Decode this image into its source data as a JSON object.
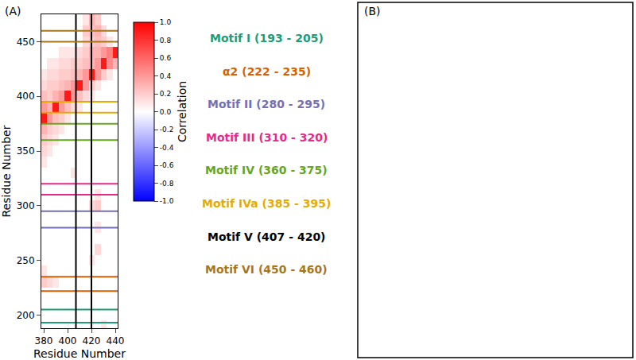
{
  "chart_data": {
    "type": "heatmap",
    "panel_label": "(A)",
    "x": [
      380,
      385,
      390,
      395,
      400,
      405,
      410,
      415,
      420,
      425,
      430,
      435,
      440
    ],
    "y": [
      190,
      200,
      210,
      220,
      230,
      240,
      250,
      260,
      270,
      280,
      290,
      300,
      310,
      320,
      330,
      340,
      350,
      360,
      370,
      380,
      390,
      400,
      410,
      420,
      430,
      440,
      450,
      460,
      470
    ],
    "cells": [
      [
        0,
        0,
        0,
        0,
        0,
        0,
        0,
        0,
        0,
        0,
        0.1,
        0,
        0
      ],
      [
        0,
        0,
        0,
        0,
        0,
        0,
        0,
        0,
        0,
        0,
        0,
        0,
        0
      ],
      [
        0,
        0,
        0,
        0,
        0,
        0,
        0,
        0,
        0,
        0,
        0,
        0,
        0
      ],
      [
        0,
        0,
        0,
        0,
        0,
        0,
        0,
        0,
        0,
        0,
        0,
        0,
        0
      ],
      [
        0.2,
        0.15,
        0.1,
        0,
        0,
        0,
        0,
        0,
        0,
        0,
        0,
        0,
        0
      ],
      [
        0.1,
        0,
        0,
        0,
        0,
        0,
        0,
        0,
        0,
        0,
        0,
        0,
        0
      ],
      [
        0,
        0,
        0,
        0,
        0,
        0,
        0,
        0,
        0.1,
        0,
        0,
        0,
        0
      ],
      [
        0,
        0,
        0,
        0,
        0,
        0,
        0,
        0,
        0,
        0.15,
        0,
        0,
        0
      ],
      [
        0,
        0,
        0,
        0,
        0,
        0,
        0,
        0,
        0,
        0,
        0,
        0,
        0
      ],
      [
        0,
        0,
        0,
        0,
        0,
        0,
        0,
        0,
        0,
        0.1,
        0,
        0,
        0
      ],
      [
        0,
        0,
        0,
        0,
        0,
        0,
        0,
        0,
        0,
        0,
        0,
        0,
        0
      ],
      [
        0,
        0,
        0,
        0,
        0,
        0,
        0,
        0,
        0.15,
        0.2,
        0,
        0,
        0
      ],
      [
        0,
        0,
        0,
        0,
        0,
        0,
        0,
        0,
        0,
        0.1,
        0,
        0,
        0
      ],
      [
        0,
        0,
        0,
        0,
        0,
        0,
        0,
        0,
        0,
        0,
        0,
        0,
        0
      ],
      [
        0,
        0,
        0,
        0,
        0,
        0.1,
        0,
        0,
        0,
        0,
        0,
        0,
        0
      ],
      [
        0.1,
        0,
        0,
        0,
        0,
        0,
        0,
        0,
        0,
        0,
        0,
        0,
        0
      ],
      [
        0.15,
        0.1,
        0,
        0,
        0,
        0,
        0,
        0,
        0,
        0,
        0,
        0,
        0
      ],
      [
        0.2,
        0.15,
        0.1,
        0,
        0,
        0,
        0,
        0,
        0,
        0,
        0,
        0,
        0
      ],
      [
        0.3,
        0.2,
        0.15,
        0.1,
        0,
        0,
        0,
        0,
        0,
        0,
        0,
        0,
        0
      ],
      [
        0.9,
        0.4,
        0.25,
        0.2,
        0.1,
        0,
        0,
        0,
        0,
        0,
        0,
        0,
        0
      ],
      [
        0.4,
        0.3,
        0.9,
        0.4,
        0.25,
        0.15,
        0.1,
        0,
        0,
        0,
        0,
        0,
        0
      ],
      [
        0.25,
        0.2,
        0.3,
        0.4,
        0.9,
        0.4,
        0.25,
        0.15,
        0.1,
        0,
        0,
        0,
        0
      ],
      [
        0.15,
        0.2,
        0.2,
        0.25,
        0.3,
        0.4,
        0.9,
        0.4,
        0.2,
        0.1,
        0,
        0,
        0
      ],
      [
        0.1,
        0.15,
        0.15,
        0.2,
        0.2,
        0.25,
        0.3,
        0.4,
        0.9,
        0.4,
        0.2,
        0.1,
        0
      ],
      [
        0,
        0.1,
        0.1,
        0.15,
        0.15,
        0.2,
        0.2,
        0.25,
        0.3,
        0.4,
        0.9,
        0.45,
        0.3
      ],
      [
        0,
        0,
        0,
        0.1,
        0.1,
        0.1,
        0.15,
        0.2,
        0.3,
        0.3,
        0.4,
        0.5,
        0.9
      ],
      [
        0,
        0,
        0,
        0,
        0,
        0,
        0,
        0.15,
        0.2,
        0.25,
        0.2,
        0.1,
        0
      ],
      [
        0,
        0,
        0,
        0,
        0,
        0,
        0,
        0.2,
        0.25,
        0.3,
        0.15,
        0,
        0
      ],
      [
        0,
        0,
        0,
        0,
        0,
        0,
        0,
        0.1,
        0.3,
        0.2,
        0,
        0,
        0
      ]
    ],
    "xlim": [
      378,
      442
    ],
    "xticks": [
      380,
      400,
      420,
      440
    ],
    "ylim": [
      188,
      475
    ],
    "yticks": [
      200,
      250,
      300,
      350,
      400,
      450
    ],
    "xlabel": "Residue Number",
    "ylabel": "Residue Number",
    "colorbar": {
      "title": "Correlation",
      "range": [
        -1,
        1
      ],
      "ticks": [
        {
          "value": -1,
          "label": "-1.0"
        },
        {
          "value": -0.8,
          "label": "-0.8"
        },
        {
          "value": -0.6,
          "label": "-0.6"
        },
        {
          "value": -0.4,
          "label": "-0.4"
        },
        {
          "value": -0.2,
          "label": "-0.2"
        },
        {
          "value": 0,
          "label": "0.0"
        },
        {
          "value": 0.2,
          "label": "0.2"
        },
        {
          "value": 0.4,
          "label": "0.4"
        },
        {
          "value": 0.6,
          "label": "0.6"
        },
        {
          "value": 0.8,
          "label": "0.8"
        },
        {
          "value": 1,
          "label": "1.0"
        }
      ]
    },
    "motifs": [
      {
        "label": "Motif I (193 - 205)",
        "range": [
          193,
          205
        ],
        "color": "#1b9e77",
        "axis": "y"
      },
      {
        "label": "α2 (222 - 235)",
        "range": [
          222,
          235
        ],
        "color": "#d95f02",
        "axis": "y"
      },
      {
        "label": "Motif II (280 - 295)",
        "range": [
          280,
          295
        ],
        "color": "#7570b3",
        "axis": "y"
      },
      {
        "label": "Motif III (310 - 320)",
        "range": [
          310,
          320
        ],
        "color": "#e7298a",
        "axis": "y"
      },
      {
        "label": "Motif IV (360 - 375)",
        "range": [
          360,
          375
        ],
        "color": "#66a61e",
        "axis": "y"
      },
      {
        "label": "Motif IVa (385 - 395)",
        "range": [
          385,
          395
        ],
        "color": "#e6ab02",
        "axis": "y"
      },
      {
        "label": "Motif V (407 - 420)",
        "range": [
          407,
          420
        ],
        "color": "#000000",
        "axis": "x"
      },
      {
        "label": "Motif VI (450 - 460)",
        "range": [
          450,
          460
        ],
        "color": "#a6761d",
        "axis": "y"
      }
    ]
  },
  "panel_b": {
    "label": "(B)"
  }
}
